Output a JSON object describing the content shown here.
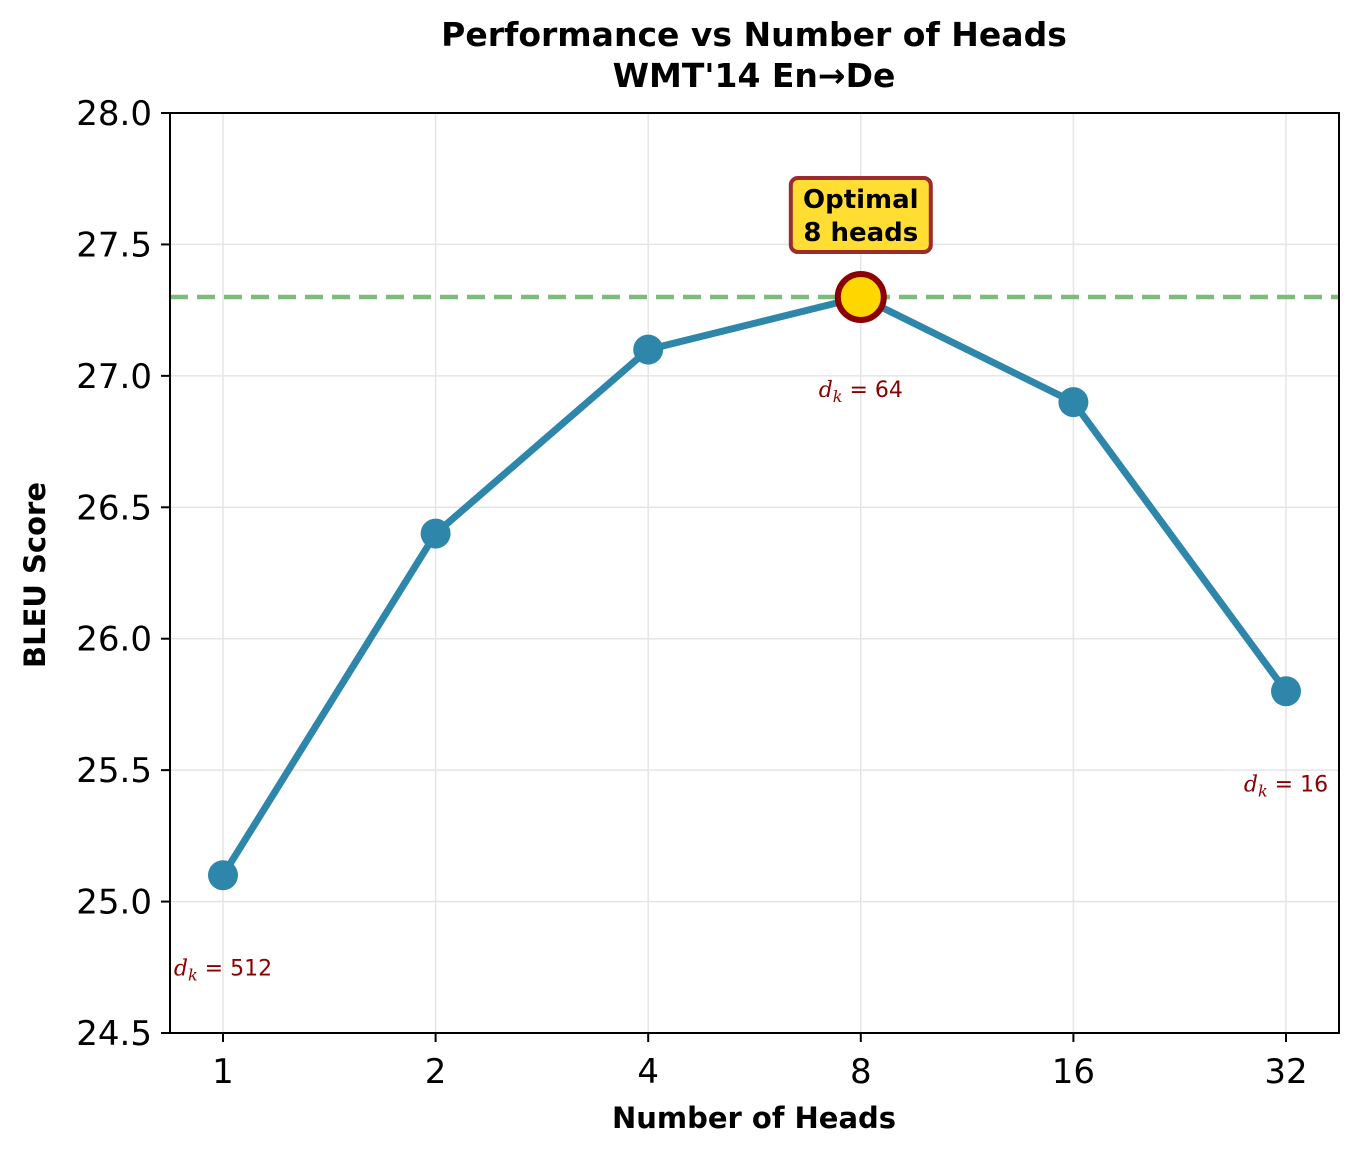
{
  "chart_data": {
    "type": "line",
    "title": "Performance vs Number of Heads",
    "subtitle": "WMT'14 En→De",
    "xlabel": "Number of Heads",
    "ylabel": "BLEU Score",
    "categories": [
      "1",
      "2",
      "4",
      "8",
      "16",
      "32"
    ],
    "series": [
      {
        "values": [
          25.1,
          26.4,
          27.1,
          27.3,
          26.9,
          25.8
        ]
      }
    ],
    "ylim": [
      24.5,
      28.0
    ],
    "yticks": [
      "24.5",
      "25.0",
      "25.5",
      "26.0",
      "26.5",
      "27.0",
      "27.5",
      "28.0"
    ],
    "reference_line": {
      "y": 27.3,
      "style": "dashed"
    },
    "highlight": {
      "category": "8",
      "value": 27.3
    },
    "callout": {
      "line1": "Optimal",
      "line2": "8 heads"
    },
    "annotations": [
      {
        "category": "1",
        "base": "d",
        "sub": "k",
        "rest": " = 512"
      },
      {
        "category": "8",
        "base": "d",
        "sub": "k",
        "rest": " = 64"
      },
      {
        "category": "32",
        "base": "d",
        "sub": "k",
        "rest": " = 16"
      }
    ],
    "grid": true,
    "colors": {
      "line": "#2e86ab",
      "reference": "#7cbb7c",
      "highlight_fill": "#ffd700",
      "highlight_edge": "#8b0000",
      "callout_fill": "#ffdd33",
      "callout_edge": "#9b2c2c",
      "annotation": "#8b0000",
      "grid": "#e5e5e5"
    }
  }
}
